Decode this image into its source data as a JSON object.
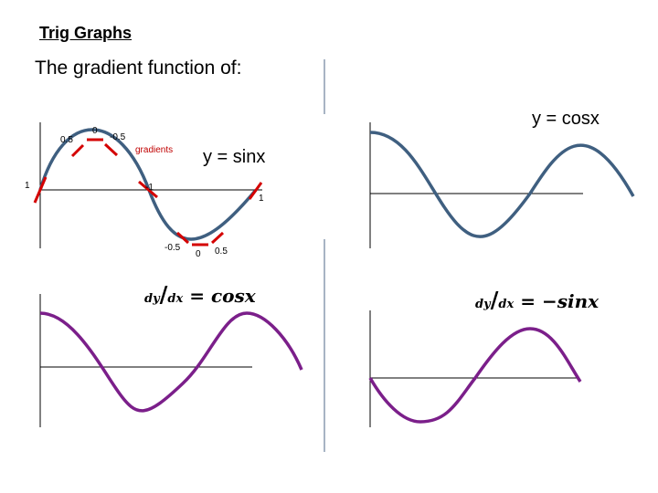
{
  "slide": {
    "title": "Trig Graphs",
    "subtitle": "The gradient function of:"
  },
  "graphs": {
    "sin": {
      "label": "y = sinx",
      "gradients_label": "gradients",
      "marks": [
        "1",
        "0.5",
        "0",
        "-0.5",
        "-1",
        "-0.5",
        "0",
        "0.5",
        "1"
      ]
    },
    "cos": {
      "label": "y = cosx"
    },
    "dsin": {
      "dy": "dy",
      "dx": "dx",
      "eq": "=",
      "fn": "cosx"
    },
    "dcos": {
      "dy": "dy",
      "dx": "dx",
      "eq": "=",
      "fn": "−sinx"
    }
  },
  "colors": {
    "curve": "#3f5f80",
    "derivative": "#7b1f8a",
    "tangent": "#d40000",
    "axis": "#000000",
    "divider": "#8a9bb0"
  }
}
